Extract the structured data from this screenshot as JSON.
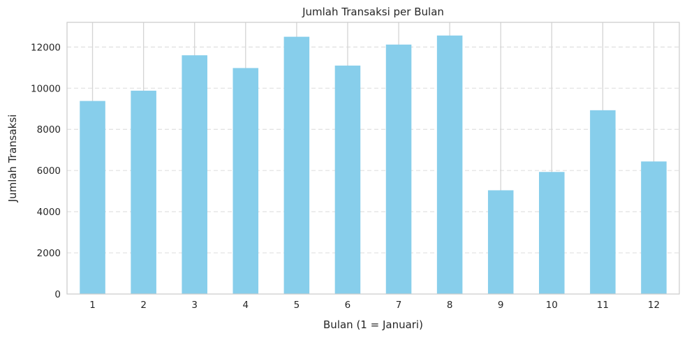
{
  "chart_data": {
    "type": "bar",
    "title": "Jumlah Transaksi per Bulan",
    "xlabel": "Bulan (1 = Januari)",
    "ylabel": "Jumlah Transaksi",
    "categories": [
      "1",
      "2",
      "3",
      "4",
      "5",
      "6",
      "7",
      "8",
      "9",
      "10",
      "11",
      "12"
    ],
    "values": [
      9380,
      9880,
      11600,
      10980,
      12500,
      11100,
      12120,
      12560,
      5040,
      5930,
      8930,
      6440
    ],
    "ylim": [
      0,
      13200
    ],
    "yticks": [
      0,
      2000,
      4000,
      6000,
      8000,
      10000,
      12000
    ],
    "grid": "y-dashed",
    "bar_color": "#87ceeb",
    "legend": "none"
  }
}
